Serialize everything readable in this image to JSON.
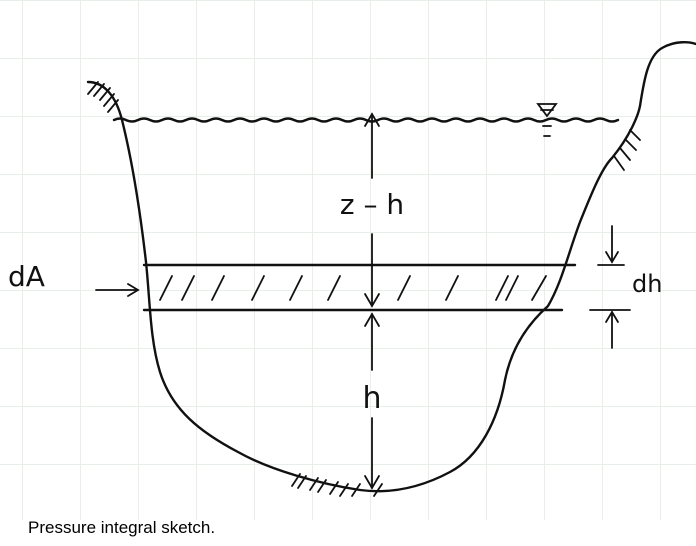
{
  "figure": {
    "labels": {
      "depth_above": "z – h",
      "depth_below": "h",
      "strip_area": "dA",
      "strip_thickness": "dh"
    },
    "caption": "Pressure integral sketch."
  },
  "colors": {
    "ink": "#111111",
    "grid": "#e8eee8",
    "background": "#ffffff"
  }
}
